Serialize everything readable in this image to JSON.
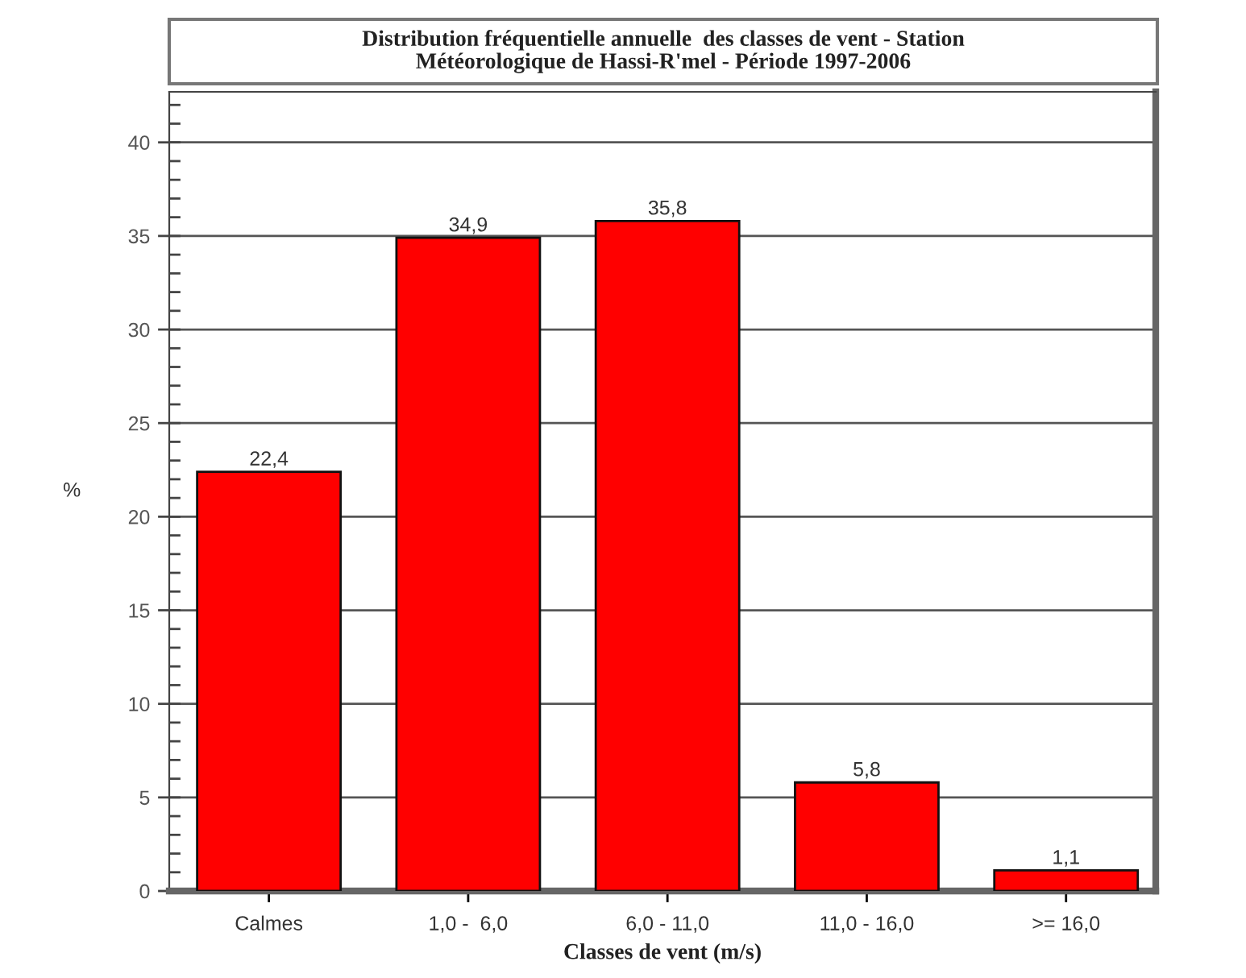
{
  "chart_data": {
    "type": "bar",
    "title": "Distribution fréquentielle annuelle  des classes de vent - Station\nMétéorologique de Hassi-R'mel - Période 1997-2006",
    "xlabel": "Classes de vent (m/s)",
    "ylabel": "%",
    "categories": [
      "Calmes",
      "1,0 -  6,0",
      "6,0 - 11,0",
      "11,0 - 16,0",
      ">= 16,0"
    ],
    "values": [
      22.4,
      34.9,
      35.8,
      5.8,
      1.1
    ],
    "value_labels": [
      "22,4",
      "34,9",
      "35,8",
      "5,8",
      "1,1"
    ],
    "color": "#ff0000",
    "ylim": [
      0,
      42.7
    ],
    "yticks": [
      0,
      5,
      10,
      15,
      20,
      25,
      30,
      35,
      40
    ],
    "grid": "y",
    "legend": false
  }
}
